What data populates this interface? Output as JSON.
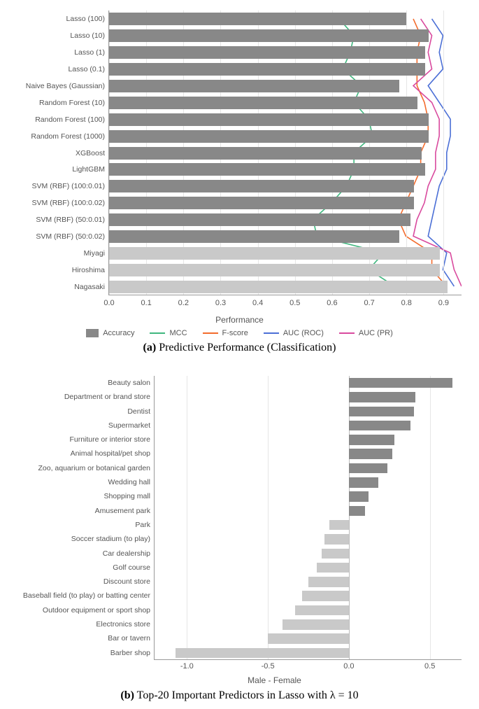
{
  "chartA": {
    "type": "horizontal-bar-with-lines",
    "xlim": [
      0.0,
      0.95
    ],
    "xtick_step": 0.1,
    "xticks": [
      "0.0",
      "0.1",
      "0.2",
      "0.3",
      "0.4",
      "0.5",
      "0.6",
      "0.7",
      "0.8",
      "0.9"
    ],
    "xlabel": "Performance",
    "bar_color": "#888888",
    "bar_color_light": "#c9c9c9",
    "grid_color": "#e6e6e6",
    "rows": [
      {
        "label": "Lasso (100)",
        "accuracy": 0.8,
        "mcc": 0.62,
        "f": 0.82,
        "roc": 0.87,
        "pr": 0.84,
        "light": false
      },
      {
        "label": "Lasso (10)",
        "accuracy": 0.86,
        "mcc": 0.66,
        "f": 0.84,
        "roc": 0.9,
        "pr": 0.87,
        "light": false
      },
      {
        "label": "Lasso (1)",
        "accuracy": 0.85,
        "mcc": 0.65,
        "f": 0.83,
        "roc": 0.89,
        "pr": 0.86,
        "light": false
      },
      {
        "label": "Lasso (0.1)",
        "accuracy": 0.85,
        "mcc": 0.63,
        "f": 0.83,
        "roc": 0.9,
        "pr": 0.87,
        "light": false
      },
      {
        "label": "Naive Bayes (Gaussian)",
        "accuracy": 0.78,
        "mcc": 0.68,
        "f": 0.83,
        "roc": 0.86,
        "pr": 0.82,
        "light": false
      },
      {
        "label": "Random Forest (10)",
        "accuracy": 0.83,
        "mcc": 0.66,
        "f": 0.85,
        "roc": 0.89,
        "pr": 0.87,
        "light": false
      },
      {
        "label": "Random Forest (100)",
        "accuracy": 0.86,
        "mcc": 0.7,
        "f": 0.86,
        "roc": 0.92,
        "pr": 0.89,
        "light": false
      },
      {
        "label": "Random Forest (1000)",
        "accuracy": 0.86,
        "mcc": 0.71,
        "f": 0.86,
        "roc": 0.92,
        "pr": 0.89,
        "light": false
      },
      {
        "label": "XGBoost",
        "accuracy": 0.84,
        "mcc": 0.66,
        "f": 0.84,
        "roc": 0.91,
        "pr": 0.88,
        "light": false
      },
      {
        "label": "LightGBM",
        "accuracy": 0.85,
        "mcc": 0.66,
        "f": 0.84,
        "roc": 0.91,
        "pr": 0.88,
        "light": false
      },
      {
        "label": "SVM (RBF) (100:0.01)",
        "accuracy": 0.82,
        "mcc": 0.64,
        "f": 0.82,
        "roc": 0.89,
        "pr": 0.86,
        "light": false
      },
      {
        "label": "SVM (RBF) (100:0.02)",
        "accuracy": 0.82,
        "mcc": 0.6,
        "f": 0.8,
        "roc": 0.88,
        "pr": 0.85,
        "light": false
      },
      {
        "label": "SVM (RBF) (50:0.01)",
        "accuracy": 0.81,
        "mcc": 0.55,
        "f": 0.78,
        "roc": 0.87,
        "pr": 0.83,
        "light": false
      },
      {
        "label": "SVM (RBF) (50:0.02)",
        "accuracy": 0.78,
        "mcc": 0.56,
        "f": 0.8,
        "roc": 0.86,
        "pr": 0.82,
        "light": false
      },
      {
        "label": "Miyagi",
        "accuracy": 0.89,
        "mcc": 0.74,
        "f": 0.87,
        "roc": 0.91,
        "pr": 0.92,
        "light": true
      },
      {
        "label": "Hiroshima",
        "accuracy": 0.89,
        "mcc": 0.7,
        "f": 0.87,
        "roc": 0.9,
        "pr": 0.93,
        "light": true
      },
      {
        "label": "Nagasaki",
        "accuracy": 0.91,
        "mcc": 0.77,
        "f": 0.91,
        "roc": 0.93,
        "pr": 0.95,
        "light": true
      }
    ],
    "legend": {
      "accuracy": "Accuracy",
      "mcc": "MCC",
      "f": "F-score",
      "roc": "AUC (ROC)",
      "pr": "AUC (PR)"
    },
    "line_colors": {
      "mcc": "#3fb77e",
      "f": "#f36b2c",
      "roc": "#4b6fd6",
      "pr": "#d94a9e"
    },
    "caption_label": "(a)",
    "caption_text": "Predictive Performance (Classification)"
  },
  "chartB": {
    "type": "diverging-horizontal-bar",
    "xlim": [
      -1.2,
      0.7
    ],
    "xticks": [
      -1.0,
      -0.5,
      0.0,
      0.5
    ],
    "xtick_labels": [
      "-1.0",
      "-0.5",
      "0.0",
      "0.5"
    ],
    "xlabel": "Male - Female",
    "pos_color": "#888888",
    "neg_color": "#c9c9c9",
    "rows": [
      {
        "label": "Beauty salon",
        "value": 0.64
      },
      {
        "label": "Department or brand store",
        "value": 0.41
      },
      {
        "label": "Dentist",
        "value": 0.4
      },
      {
        "label": "Supermarket",
        "value": 0.38
      },
      {
        "label": "Furniture or interior store",
        "value": 0.28
      },
      {
        "label": "Animal hospital/pet shop",
        "value": 0.27
      },
      {
        "label": "Zoo, aquarium or botanical garden",
        "value": 0.24
      },
      {
        "label": "Wedding hall",
        "value": 0.18
      },
      {
        "label": "Shopping mall",
        "value": 0.12
      },
      {
        "label": "Amusement park",
        "value": 0.1
      },
      {
        "label": "Park",
        "value": -0.12
      },
      {
        "label": "Soccer stadium (to play)",
        "value": -0.15
      },
      {
        "label": "Car dealership",
        "value": -0.17
      },
      {
        "label": "Golf course",
        "value": -0.2
      },
      {
        "label": "Discount store",
        "value": -0.25
      },
      {
        "label": "Baseball field (to play) or batting center",
        "value": -0.29
      },
      {
        "label": "Outdoor equipment or sport shop",
        "value": -0.33
      },
      {
        "label": "Electronics store",
        "value": -0.41
      },
      {
        "label": "Bar or tavern",
        "value": -0.5
      },
      {
        "label": "Barber shop",
        "value": -1.07
      }
    ],
    "caption_label": "(b)",
    "caption_text": "Top-20 Important Predictors in Lasso with λ = 10"
  }
}
